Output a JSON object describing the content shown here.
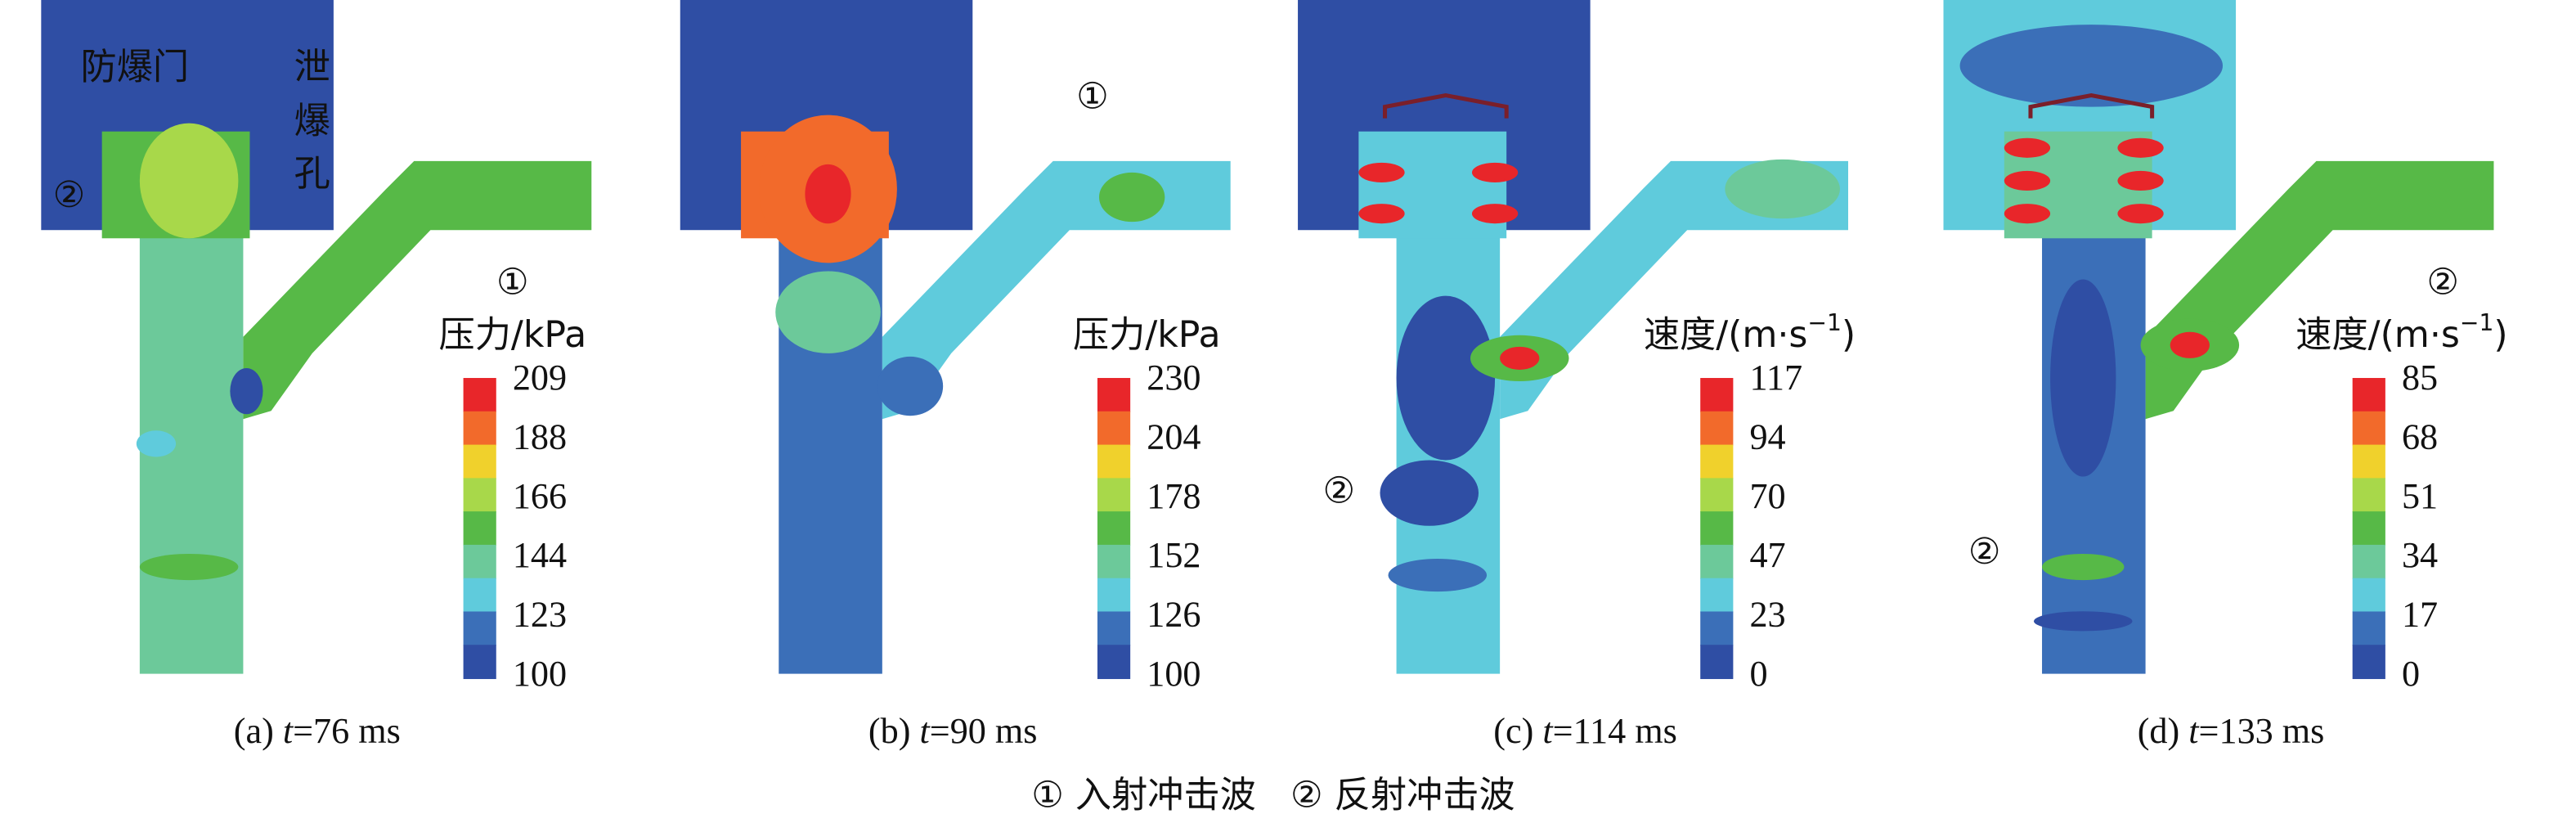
{
  "panels": [
    {
      "label": "(a)",
      "time_var": "t",
      "time": "=76 ms",
      "colorbar": {
        "title": [
          "压力/kPa"
        ],
        "ticks": [
          209,
          188,
          166,
          144,
          123,
          100
        ]
      },
      "annotations": [
        "防爆门",
        "泄",
        "爆",
        "孔",
        "②",
        "①"
      ]
    },
    {
      "label": "(b)",
      "time_var": "t",
      "time": "=90 ms",
      "colorbar": {
        "title": [
          "压力/kPa"
        ],
        "ticks": [
          230,
          204,
          178,
          152,
          126,
          100
        ]
      },
      "annotations": [
        "①"
      ]
    },
    {
      "label": "(c)",
      "time_var": "t",
      "time": "=114 ms",
      "colorbar": {
        "title": [
          "速度/(m·s",
          "−1",
          ")"
        ],
        "ticks": [
          117,
          94,
          70,
          47,
          23,
          0
        ]
      },
      "annotations": [
        "②"
      ]
    },
    {
      "label": "(d)",
      "time_var": "t",
      "time": "=133 ms",
      "colorbar": {
        "title": [
          "速度/(m·s",
          "−1",
          ")"
        ],
        "ticks": [
          85,
          68,
          51,
          34,
          17,
          0
        ]
      },
      "annotations": [
        "②",
        "②"
      ]
    }
  ],
  "legend": [
    "① 入射冲击波",
    "② 反射冲击波"
  ]
}
